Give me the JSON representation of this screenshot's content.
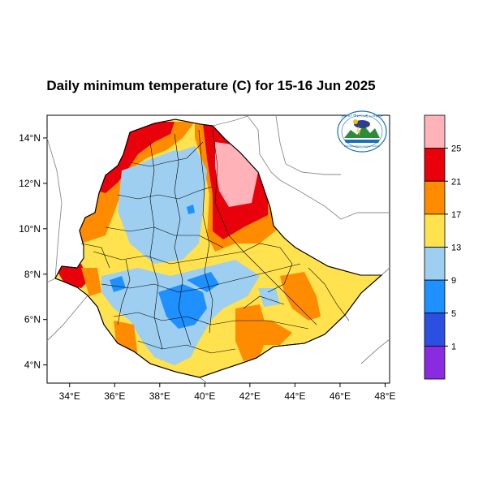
{
  "title": "Daily minimum temperature (C) for 15-16 Jun 2025",
  "map": {
    "region": "Ethiopia",
    "lon_range": [
      33,
      48.2
    ],
    "lat_range": [
      3.2,
      15
    ],
    "lon_ticks": [
      "34°E",
      "36°E",
      "38°E",
      "40°E",
      "42°E",
      "44°E",
      "46°E",
      "48°E"
    ],
    "lat_ticks": [
      "14°N",
      "12°N",
      "10°N",
      "8°N",
      "6°N",
      "4°N"
    ],
    "lon_tick_values": [
      34,
      36,
      38,
      40,
      42,
      44,
      46,
      48
    ],
    "lat_tick_values": [
      14,
      12,
      10,
      8,
      6,
      4
    ]
  },
  "legend": {
    "levels": [
      "25",
      "21",
      "17",
      "13",
      "9",
      "5",
      "1"
    ],
    "colors": [
      "#ffb3b8",
      "#e8000b",
      "#ff8c00",
      "#ffe24d",
      "#9ecff0",
      "#1e90ff",
      "#2b4fe0",
      "#8a2be2"
    ]
  },
  "logo": {
    "text_top": "ኢትዮጵያ ሜቲዎሮሎጂ ኢንስቲትዩት",
    "text_bottom": "Ethiopian Meteorological Institute"
  }
}
